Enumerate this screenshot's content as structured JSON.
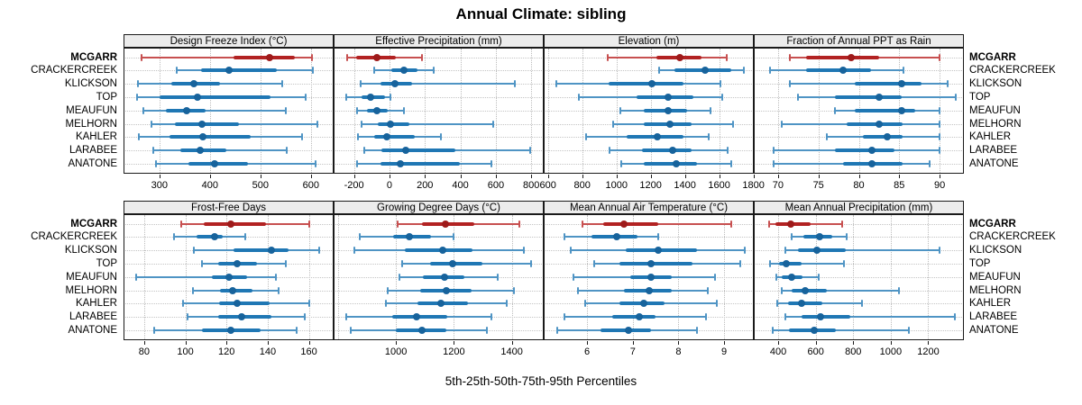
{
  "title": "Annual Climate: sibling",
  "caption": "5th-25th-50th-75th-95th Percentiles",
  "highlight_station": "MCGARR",
  "stations": [
    "MCGARR",
    "CRACKERCREEK",
    "KLICKSON",
    "TOP",
    "MEAUFUN",
    "MELHORN",
    "KAHLER",
    "LARABEE",
    "ANATONE"
  ],
  "colors": {
    "highlight_line": "#c75050",
    "highlight_band": "#b22222",
    "highlight_dot": "#9e1a1a",
    "normal_line": "#4f94c4",
    "normal_band": "#1f77b4",
    "normal_dot": "#17639c",
    "strip_bg": "#ececec",
    "panel_border": "#1a1a1a",
    "grid": "#c4c4c4"
  },
  "chart_data": {
    "type": "dotplot",
    "subtype": "percentile-intervals",
    "percentile_labels": [
      "5th",
      "25th",
      "50th",
      "75th",
      "95th"
    ],
    "grid": "dotted",
    "rows": 2,
    "cols": 4,
    "panels": [
      {
        "title": "Design Freeze Index (°C)",
        "row": 0,
        "col": 0,
        "xlim": [
          229,
          645
        ],
        "ticks": [
          300,
          400,
          500,
          600
        ],
        "extra_gridlines": [],
        "values": [
          [
            265,
            447,
            518,
            569,
            603
          ],
          [
            335,
            383,
            438,
            532,
            604
          ],
          [
            258,
            324,
            368,
            420,
            544
          ],
          [
            255,
            300,
            375,
            520,
            590
          ],
          [
            268,
            313,
            354,
            392,
            550
          ],
          [
            284,
            330,
            384,
            458,
            613
          ],
          [
            259,
            320,
            387,
            480,
            583
          ],
          [
            288,
            342,
            381,
            432,
            553
          ],
          [
            294,
            358,
            409,
            476,
            610
          ]
        ]
      },
      {
        "title": "Effective Precipitation (mm)",
        "row": 0,
        "col": 1,
        "xlim": [
          -315,
          870
        ],
        "ticks": [
          -200,
          0,
          200,
          400,
          600,
          800
        ],
        "extra_gridlines": [],
        "values": [
          [
            -237,
            -190,
            -73,
            35,
            185
          ],
          [
            -85,
            8,
            80,
            160,
            252
          ],
          [
            -160,
            -50,
            33,
            130,
            708
          ],
          [
            -245,
            -155,
            -105,
            -25,
            5
          ],
          [
            -185,
            -127,
            -73,
            -10,
            84
          ],
          [
            -156,
            -68,
            4,
            114,
            585
          ],
          [
            -178,
            -88,
            -14,
            143,
            290
          ],
          [
            -144,
            -43,
            92,
            370,
            792
          ],
          [
            -183,
            -51,
            63,
            396,
            573
          ]
        ]
      },
      {
        "title": "Elevation (m)",
        "row": 0,
        "col": 2,
        "xlim": [
          575,
          1802
        ],
        "ticks": [
          600,
          800,
          1000,
          1200,
          1400,
          1600,
          1800
        ],
        "extra_gridlines": [],
        "values": [
          [
            949,
            1232,
            1372,
            1494,
            1646
          ],
          [
            1250,
            1340,
            1520,
            1670,
            1745
          ],
          [
            650,
            953,
            1206,
            1390,
            1608
          ],
          [
            780,
            1120,
            1300,
            1450,
            1620
          ],
          [
            1020,
            1160,
            1300,
            1410,
            1550
          ],
          [
            980,
            1160,
            1310,
            1440,
            1680
          ],
          [
            820,
            1060,
            1240,
            1390,
            1540
          ],
          [
            960,
            1150,
            1330,
            1440,
            1650
          ],
          [
            1030,
            1160,
            1350,
            1470,
            1670
          ]
        ]
      },
      {
        "title": "Fraction of Annual PPT as Rain",
        "row": 0,
        "col": 3,
        "xlim": [
          67,
          93
        ],
        "ticks": [
          70,
          75,
          80,
          85,
          90
        ],
        "extra_gridlines": [],
        "values": [
          [
            71.5,
            73.5,
            79,
            82.5,
            90
          ],
          [
            69,
            73.5,
            78,
            81.5,
            85.5
          ],
          [
            71.5,
            79.5,
            85.3,
            87.8,
            91
          ],
          [
            72.5,
            77,
            82.5,
            85.3,
            92
          ],
          [
            77,
            79.5,
            85.3,
            87,
            90
          ],
          [
            70.5,
            78.5,
            82.5,
            85.4,
            90
          ],
          [
            76,
            80.5,
            83.5,
            85.4,
            90
          ],
          [
            69.5,
            77,
            81.6,
            84.4,
            90
          ],
          [
            69.5,
            78,
            81.6,
            85.4,
            88.8
          ]
        ]
      },
      {
        "title": "Frost-Free Days",
        "row": 1,
        "col": 0,
        "xlim": [
          70,
          172
        ],
        "ticks": [
          80,
          100,
          120,
          140,
          160
        ],
        "extra_gridlines": [],
        "values": [
          [
            98,
            109,
            122,
            139,
            160
          ],
          [
            94.5,
            105.5,
            114,
            118,
            129
          ],
          [
            104,
            123.5,
            142,
            150,
            165
          ],
          [
            108,
            116,
            125,
            135,
            149
          ],
          [
            76,
            113,
            121,
            130,
            144
          ],
          [
            103.5,
            117,
            123,
            132.5,
            145.5
          ],
          [
            99,
            116.5,
            125,
            141,
            160
          ],
          [
            101,
            116,
            127.5,
            142,
            158
          ],
          [
            85,
            108,
            122,
            136.5,
            154
          ]
        ]
      },
      {
        "title": "Growing Degree Days (°C)",
        "row": 1,
        "col": 1,
        "xlim": [
          785,
          1510
        ],
        "ticks": [
          1000,
          1200,
          1400
        ],
        "extra_gridlines": [
          800
        ],
        "values": [
          [
            1005,
            1090,
            1170,
            1270,
            1425
          ],
          [
            875,
            990,
            1045,
            1120,
            1200
          ],
          [
            857,
            1030,
            1160,
            1265,
            1443
          ],
          [
            1020,
            1117,
            1196,
            1300,
            1467
          ],
          [
            1012,
            1093,
            1168,
            1236,
            1352
          ],
          [
            971,
            1085,
            1174,
            1260,
            1406
          ],
          [
            964,
            1074,
            1155,
            1250,
            1382
          ],
          [
            829,
            988,
            1070,
            1176,
            1329
          ],
          [
            843,
            1000,
            1091,
            1174,
            1315
          ]
        ]
      },
      {
        "title": "Mean Annual Air Temperature (°C)",
        "row": 1,
        "col": 2,
        "xlim": [
          5.05,
          9.65
        ],
        "ticks": [
          6,
          7,
          8,
          9
        ],
        "extra_gridlines": [],
        "values": [
          [
            5.9,
            6.35,
            6.8,
            7.55,
            9.15
          ],
          [
            5.5,
            6.1,
            6.65,
            7.1,
            7.55
          ],
          [
            5.65,
            6.85,
            7.55,
            8.4,
            9.45
          ],
          [
            6.15,
            6.7,
            7.4,
            8.3,
            9.35
          ],
          [
            5.7,
            6.95,
            7.4,
            7.85,
            8.8
          ],
          [
            5.8,
            6.8,
            7.35,
            7.85,
            8.65
          ],
          [
            5.95,
            6.7,
            7.25,
            7.7,
            8.85
          ],
          [
            5.5,
            6.55,
            7.15,
            7.5,
            8.6
          ],
          [
            5.35,
            6.3,
            6.9,
            7.4,
            8.4
          ]
        ]
      },
      {
        "title": "Mean Annual Precipitation (mm)",
        "row": 1,
        "col": 3,
        "xlim": [
          270,
          1390
        ],
        "ticks": [
          400,
          600,
          800,
          1000,
          1200
        ],
        "extra_gridlines": [],
        "values": [
          [
            350,
            385,
            465,
            575,
            740
          ],
          [
            470,
            535,
            620,
            687,
            763
          ],
          [
            437,
            505,
            605,
            760,
            1260
          ],
          [
            356,
            405,
            442,
            526,
            750
          ],
          [
            390,
            418,
            470,
            530,
            618
          ],
          [
            421,
            470,
            545,
            658,
            1045
          ],
          [
            394,
            453,
            526,
            635,
            848
          ],
          [
            437,
            523,
            627,
            784,
            1343
          ],
          [
            370,
            458,
            594,
            706,
            1098
          ]
        ]
      }
    ]
  }
}
